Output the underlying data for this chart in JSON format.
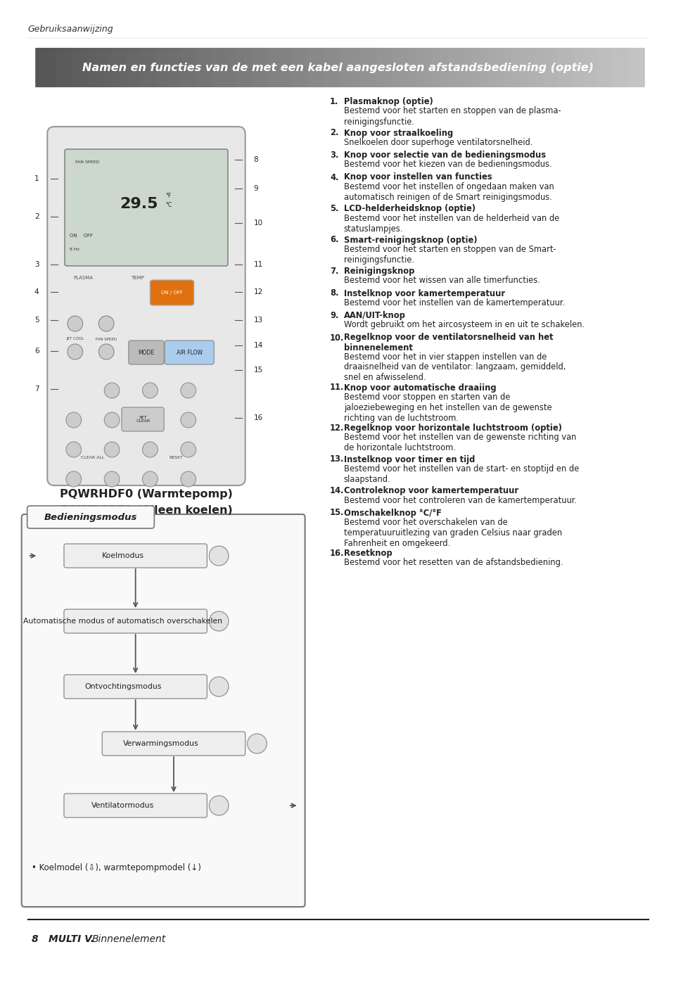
{
  "page_header": "Gebruiksaanwijzing",
  "title_banner": "Namen en functies van de met een kabel aangesloten afstandsbediening (optie)",
  "remote_title1": "PQWRHDF0 (Warmtepomp)",
  "remote_title2": "PQWRCDF0 (Alleen koelen)",
  "section_header": "Bedieningsmodus",
  "footnote": "• Koelmodel (⇩), warmtepompmodel (↓)",
  "numbered_items": [
    {
      "num": 1,
      "bold": "Plasmaknop (optie)",
      "text": "Bestemd voor het starten en stoppen van de plasma-\nreinigingsfunctie."
    },
    {
      "num": 2,
      "bold": "Knop voor straalkoeling",
      "text": "Snelkoelen door superhoge ventilatorsnelheid."
    },
    {
      "num": 3,
      "bold": "Knop voor selectie van de bedieningsmodus",
      "text": "Bestemd voor het kiezen van de bedieningsmodus."
    },
    {
      "num": 4,
      "bold": "Knop voor instellen van functies",
      "text": "Bestemd voor het instellen of ongedaan maken van\nautomatisch reinigen of de Smart reinigingsmodus."
    },
    {
      "num": 5,
      "bold": "LCD-helderheidsknop (optie)",
      "text": "Bestemd voor het instellen van de helderheid van de\nstatuslampjes."
    },
    {
      "num": 6,
      "bold": "Smart-reinigingsknop (optie)",
      "text": "Bestemd voor het starten en stoppen van de Smart-\nreinigingsfunctie."
    },
    {
      "num": 7,
      "bold": "Reinigingsknop",
      "text": "Bestemd voor het wissen van alle timerfuncties."
    },
    {
      "num": 8,
      "bold": "Instelknop voor kamertemperatuur",
      "text": "Bestemd voor het instellen van de kamertemperatuur."
    },
    {
      "num": 9,
      "bold": "AAN/UIT-knop",
      "text": "Wordt gebruikt om het aircosysteem in en uit te schakelen."
    },
    {
      "num": 10,
      "bold": "Regelknop voor de ventilatorsnelheid van het\nbinnenelement",
      "text": "Bestemd voor het in vier stappen instellen van de\ndraaisnelheid van de ventilator: langzaam, gemiddeld,\nsnel en afwisselend."
    },
    {
      "num": 11,
      "bold": "Knop voor automatische draaiing",
      "text": "Bestemd voor stoppen en starten van de\njaloeziebeweging en het instellen van de gewenste\nrichting van de luchtstroom."
    },
    {
      "num": 12,
      "bold": "Regelknop voor horizontale luchtstroom (optie)",
      "text": "Bestemd voor het instellen van de gewenste richting van\nde horizontale luchtstroom."
    },
    {
      "num": 13,
      "bold": "Instelknop voor timer en tijd",
      "text": "Bestemd voor het instellen van de start- en stoptijd en de\nslaapstand."
    },
    {
      "num": 14,
      "bold": "Controleknop voor kamertemperatuur",
      "text": "Bestemd voor het controleren van de kamertemperatuur."
    },
    {
      "num": 15,
      "bold": "Omschakelknop °C/°F",
      "text": "Bestemd voor het overschakelen van de\ntemperatuuruitlezing van graden Celsius naar graden\nFahrenheit en omgekeerd."
    },
    {
      "num": 16,
      "bold": "Resetknop",
      "text": "Bestemd voor het resetten van de afstandsbediening."
    }
  ],
  "footer_num": "8",
  "footer_brand": "MULTI V.",
  "footer_text": "Binnenelement",
  "bg_color": "#ffffff"
}
